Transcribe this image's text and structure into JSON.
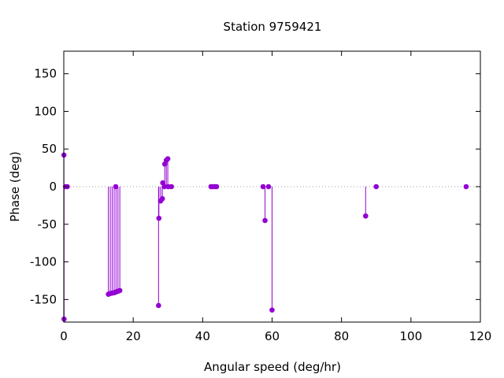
{
  "chart_data": {
    "type": "scatter",
    "style": "impulses",
    "title": "Station 9759421",
    "xlabel": "Angular speed (deg/hr)",
    "ylabel": "Phase (deg)",
    "xlim": [
      0,
      120
    ],
    "ylim": [
      -180,
      180
    ],
    "xticks": [
      0,
      20,
      40,
      60,
      80,
      100,
      120
    ],
    "yticks": [
      -150,
      -100,
      -50,
      0,
      50,
      100,
      150
    ],
    "zero_line": true,
    "grid": false,
    "colors": {
      "series": "#9400d3",
      "zero_line": "#a0a0a0",
      "axes": "#000000"
    },
    "series": [
      {
        "points": [
          [
            0.04,
            42
          ],
          [
            0.08,
            -176
          ],
          [
            0.5,
            0
          ],
          [
            1.0,
            0
          ],
          [
            12.85,
            -143
          ],
          [
            13.4,
            -142
          ],
          [
            13.94,
            -141.5
          ],
          [
            14.5,
            -141
          ],
          [
            14.96,
            0
          ],
          [
            15.04,
            -140
          ],
          [
            15.6,
            -139
          ],
          [
            16.14,
            -138
          ],
          [
            27.3,
            -158
          ],
          [
            27.4,
            -42
          ],
          [
            27.9,
            -19
          ],
          [
            28.4,
            -16
          ],
          [
            28.51,
            5
          ],
          [
            28.98,
            0
          ],
          [
            29.08,
            30
          ],
          [
            29.53,
            35
          ],
          [
            29.96,
            37
          ],
          [
            30.08,
            0
          ],
          [
            31.0,
            0
          ],
          [
            42.4,
            0
          ],
          [
            42.9,
            0
          ],
          [
            43.5,
            0
          ],
          [
            44.0,
            0
          ],
          [
            57.4,
            0
          ],
          [
            57.97,
            -45
          ],
          [
            58.98,
            0
          ],
          [
            59.99,
            -164
          ],
          [
            86.95,
            -39
          ],
          [
            89.99,
            0
          ],
          [
            115.9,
            0
          ]
        ]
      }
    ]
  }
}
